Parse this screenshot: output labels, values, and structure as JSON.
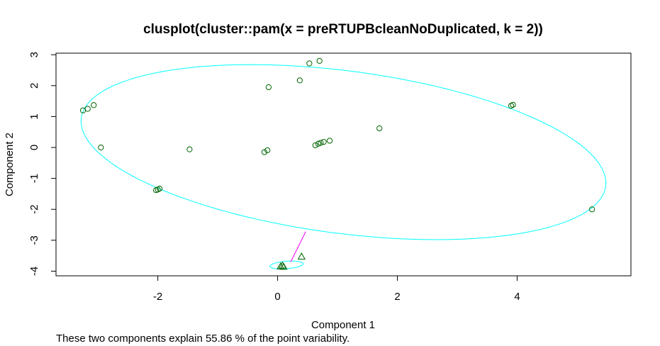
{
  "chart_data": {
    "type": "scatter",
    "title": "clusplot(cluster::pam(x = preRTUPBcleanNoDuplicated, k = 2))",
    "xlabel": "Component 1",
    "ylabel": "Component 2",
    "subtitle": "These two components explain 55.86 % of the point variability.",
    "xlim": [
      -3.7,
      5.9
    ],
    "ylim": [
      -4.15,
      3.05
    ],
    "xticks": [
      -2,
      0,
      2,
      4
    ],
    "yticks": [
      -4,
      -3,
      -2,
      -1,
      0,
      1,
      2,
      3
    ],
    "grid": false,
    "colors": {
      "points": "#006400",
      "ellipse": "#00FFFF",
      "link": "#FF00FF",
      "link_short": "#00BFFF"
    },
    "series": [
      {
        "marker": "circle",
        "x": [
          -3.25,
          -3.17,
          -3.07,
          -2.95,
          -2.03,
          -2.0,
          -1.97,
          -1.47,
          -0.22,
          -0.17,
          -0.15,
          0.37,
          0.53,
          0.63,
          0.68,
          0.72,
          0.77,
          0.87,
          0.7,
          1.7,
          3.9,
          3.93,
          5.25
        ],
        "y": [
          1.2,
          1.25,
          1.37,
          0.0,
          -1.38,
          -1.36,
          -1.33,
          -0.06,
          -0.15,
          -0.09,
          1.95,
          2.17,
          2.72,
          0.07,
          0.12,
          0.15,
          0.18,
          0.22,
          2.8,
          0.62,
          1.35,
          1.38,
          -2.0
        ]
      },
      {
        "marker": "triangle",
        "x": [
          0.05,
          0.08,
          0.1,
          0.4
        ],
        "y": [
          -3.85,
          -3.82,
          -3.86,
          -3.53
        ]
      }
    ],
    "ellipses": [
      {
        "center": [
          1.1,
          -0.15
        ],
        "semi_axes": [
          4.55,
          2.55
        ],
        "angle_deg": -19
      },
      {
        "center": [
          0.15,
          -3.8
        ],
        "semi_axes": [
          0.28,
          0.12
        ],
        "angle_deg": 10
      }
    ],
    "links": [
      {
        "x": [
          0.22,
          0.47
        ],
        "y": [
          -3.7,
          -2.72
        ]
      }
    ]
  }
}
